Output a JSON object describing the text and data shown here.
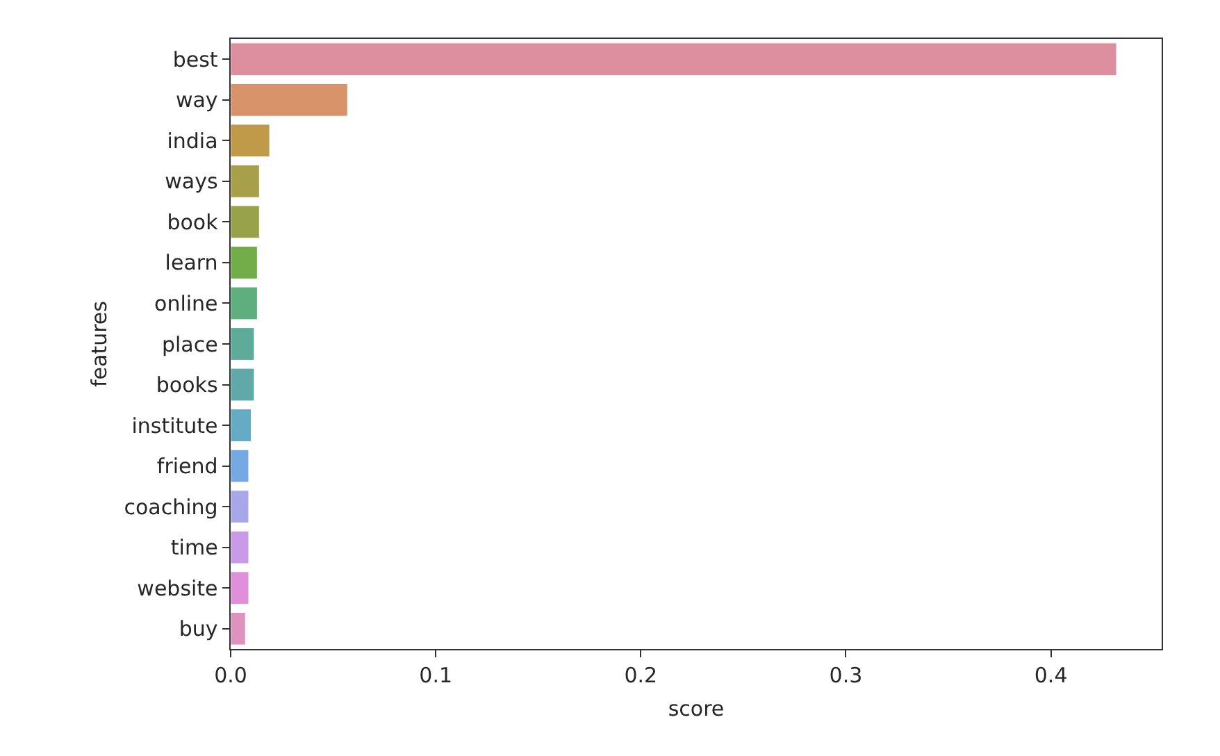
{
  "chart_data": {
    "type": "bar",
    "orientation": "horizontal",
    "xlabel": "score",
    "ylabel": "features",
    "categories": [
      "best",
      "way",
      "india",
      "ways",
      "book",
      "learn",
      "online",
      "place",
      "books",
      "institute",
      "friend",
      "coaching",
      "time",
      "website",
      "buy"
    ],
    "values": [
      0.432,
      0.057,
      0.019,
      0.014,
      0.014,
      0.013,
      0.013,
      0.0115,
      0.0115,
      0.01,
      0.0088,
      0.0088,
      0.0088,
      0.0088,
      0.0072
    ],
    "colors": [
      "#dd8fa0",
      "#d9936b",
      "#c09a48",
      "#a89f4a",
      "#98a24a",
      "#72ad4a",
      "#5fae7d",
      "#5fab99",
      "#60a9a8",
      "#66abc4",
      "#76a8e3",
      "#a7a7ea",
      "#c99ae8",
      "#e08fdb",
      "#de92c0"
    ],
    "xlim": [
      0,
      0.454
    ],
    "xticks": [
      {
        "value": 0,
        "label": "0.0"
      },
      0.1,
      0.2,
      0.3,
      0.4
    ],
    "grid": false,
    "legend": false
  }
}
